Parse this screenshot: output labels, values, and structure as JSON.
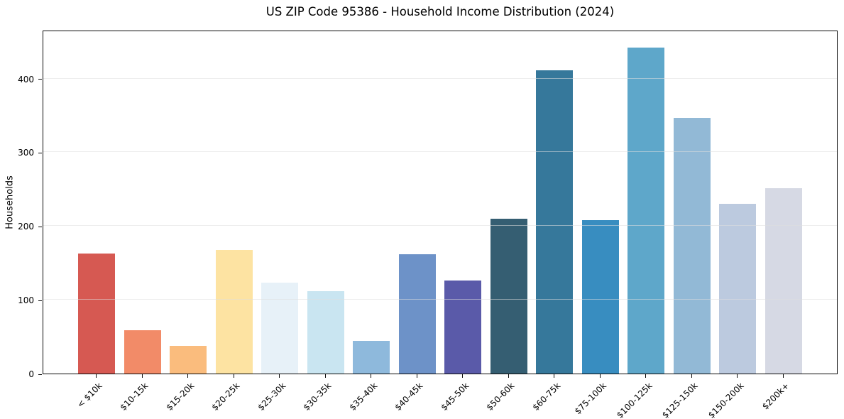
{
  "chart_data": {
    "type": "bar",
    "title": "US ZIP Code 95386 - Household Income Distribution (2024)",
    "xlabel": "",
    "ylabel": "Households",
    "categories": [
      "< $10k",
      "$10-15k",
      "$15-20k",
      "$20-25k",
      "$25-30k",
      "$30-35k",
      "$35-40k",
      "$40-45k",
      "$45-50k",
      "$50-60k",
      "$60-75k",
      "$75-100k",
      "$100-125k",
      "$125-150k",
      "$150-200k",
      "$200k+"
    ],
    "values": [
      163,
      59,
      38,
      168,
      123,
      112,
      44,
      162,
      126,
      210,
      411,
      208,
      442,
      347,
      230,
      251
    ],
    "bar_colors": [
      "#d65952",
      "#f28b68",
      "#fabc7d",
      "#fde3a2",
      "#e7f1f8",
      "#c9e5f1",
      "#8eb9dc",
      "#6d92c8",
      "#5a5aa9",
      "#355e72",
      "#36789b",
      "#388dc0",
      "#5ea7ca",
      "#92b9d6",
      "#bccadf",
      "#d6d9e4"
    ],
    "yticks": [
      0,
      100,
      200,
      300,
      400
    ],
    "ylim": [
      0,
      466
    ],
    "grid": "horizontal",
    "legend": "none",
    "xtick_rotation": 45
  }
}
